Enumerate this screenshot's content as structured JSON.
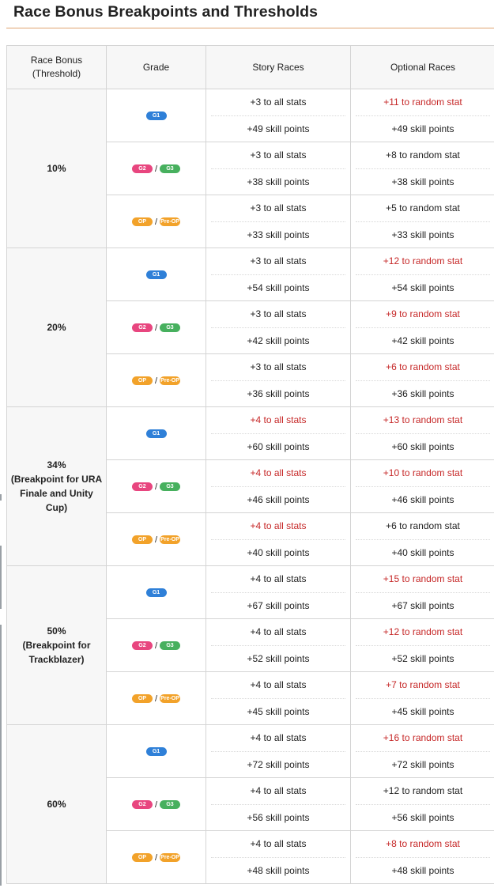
{
  "title": "Race Bonus Breakpoints and Thresholds",
  "headers": {
    "threshold_line1": "Race Bonus",
    "threshold_line2": "(Threshold)",
    "grade": "Grade",
    "story": "Story Races",
    "optional": "Optional Races"
  },
  "grade_labels": {
    "g1": "G1",
    "g2": "G2",
    "g3": "G3",
    "op": "OP",
    "preop": "Pre-OP",
    "sep": "/"
  },
  "colors": {
    "g1": "#2f80d8",
    "g2": "#e8467f",
    "g3": "#47b05e",
    "op": "#f2a22a",
    "highlight": "#c62828"
  },
  "groups": [
    {
      "threshold_lines": [
        "10%"
      ],
      "rows": [
        {
          "grade": "g1",
          "story_stat": "+3 to all stats",
          "story_stat_hl": false,
          "story_skill": "+49 skill points",
          "opt_stat": "+11 to random stat",
          "opt_stat_hl": true,
          "opt_skill": "+49 skill points"
        },
        {
          "grade": "g2g3",
          "story_stat": "+3 to all stats",
          "story_stat_hl": false,
          "story_skill": "+38 skill points",
          "opt_stat": "+8 to random stat",
          "opt_stat_hl": false,
          "opt_skill": "+38 skill points"
        },
        {
          "grade": "oppre",
          "story_stat": "+3 to all stats",
          "story_stat_hl": false,
          "story_skill": "+33 skill points",
          "opt_stat": "+5 to random stat",
          "opt_stat_hl": false,
          "opt_skill": "+33 skill points"
        }
      ]
    },
    {
      "threshold_lines": [
        "20%"
      ],
      "rows": [
        {
          "grade": "g1",
          "story_stat": "+3 to all stats",
          "story_stat_hl": false,
          "story_skill": "+54 skill points",
          "opt_stat": "+12 to random stat",
          "opt_stat_hl": true,
          "opt_skill": "+54 skill points"
        },
        {
          "grade": "g2g3",
          "story_stat": "+3 to all stats",
          "story_stat_hl": false,
          "story_skill": "+42 skill points",
          "opt_stat": "+9 to random stat",
          "opt_stat_hl": true,
          "opt_skill": "+42 skill points"
        },
        {
          "grade": "oppre",
          "story_stat": "+3 to all stats",
          "story_stat_hl": false,
          "story_skill": "+36 skill points",
          "opt_stat": "+6 to random stat",
          "opt_stat_hl": true,
          "opt_skill": "+36 skill points"
        }
      ]
    },
    {
      "threshold_lines": [
        "34%",
        "(Breakpoint for URA",
        "Finale and Unity",
        "Cup)"
      ],
      "rows": [
        {
          "grade": "g1",
          "story_stat": "+4 to all stats",
          "story_stat_hl": true,
          "story_skill": "+60 skill points",
          "opt_stat": "+13 to random stat",
          "opt_stat_hl": true,
          "opt_skill": "+60 skill points"
        },
        {
          "grade": "g2g3",
          "story_stat": "+4 to all stats",
          "story_stat_hl": true,
          "story_skill": "+46 skill points",
          "opt_stat": "+10 to random stat",
          "opt_stat_hl": true,
          "opt_skill": "+46 skill points"
        },
        {
          "grade": "oppre",
          "story_stat": "+4 to all stats",
          "story_stat_hl": true,
          "story_skill": "+40 skill points",
          "opt_stat": "+6 to random stat",
          "opt_stat_hl": false,
          "opt_skill": "+40 skill points"
        }
      ]
    },
    {
      "threshold_lines": [
        "50%",
        "(Breakpoint for",
        "Trackblazer)"
      ],
      "rows": [
        {
          "grade": "g1",
          "story_stat": "+4 to all stats",
          "story_stat_hl": false,
          "story_skill": "+67 skill points",
          "opt_stat": "+15 to random stat",
          "opt_stat_hl": true,
          "opt_skill": "+67 skill points"
        },
        {
          "grade": "g2g3",
          "story_stat": "+4 to all stats",
          "story_stat_hl": false,
          "story_skill": "+52 skill points",
          "opt_stat": "+12 to random stat",
          "opt_stat_hl": true,
          "opt_skill": "+52 skill points"
        },
        {
          "grade": "oppre",
          "story_stat": "+4 to all stats",
          "story_stat_hl": false,
          "story_skill": "+45 skill points",
          "opt_stat": "+7 to random stat",
          "opt_stat_hl": true,
          "opt_skill": "+45 skill points"
        }
      ]
    },
    {
      "threshold_lines": [
        "60%"
      ],
      "rows": [
        {
          "grade": "g1",
          "story_stat": "+4 to all stats",
          "story_stat_hl": false,
          "story_skill": "+72 skill points",
          "opt_stat": "+16 to random stat",
          "opt_stat_hl": true,
          "opt_skill": "+72 skill points"
        },
        {
          "grade": "g2g3",
          "story_stat": "+4 to all stats",
          "story_stat_hl": false,
          "story_skill": "+56 skill points",
          "opt_stat": "+12 to random stat",
          "opt_stat_hl": false,
          "opt_skill": "+56 skill points"
        },
        {
          "grade": "oppre",
          "story_stat": "+4 to all stats",
          "story_stat_hl": false,
          "story_skill": "+48 skill points",
          "opt_stat": "+8 to random stat",
          "opt_stat_hl": true,
          "opt_skill": "+48 skill points"
        }
      ]
    }
  ]
}
